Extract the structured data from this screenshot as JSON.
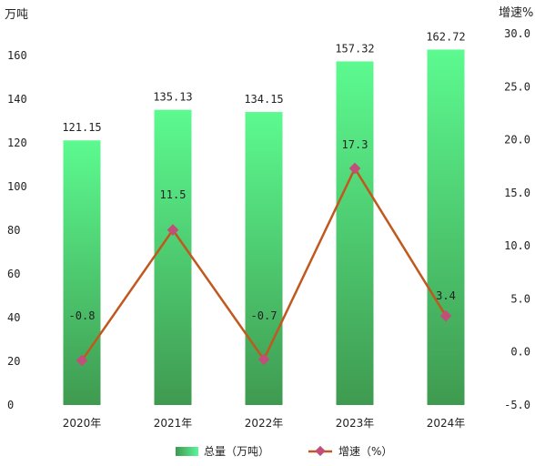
{
  "chart_data": {
    "type": "bar",
    "categories": [
      "2020年",
      "2021年",
      "2022年",
      "2023年",
      "2024年"
    ],
    "series": [
      {
        "name": "总量（万吨）",
        "kind": "bar",
        "axis": "left",
        "values": [
          121.15,
          135.13,
          134.15,
          157.32,
          162.72
        ],
        "labels": [
          "121.15",
          "135.13",
          "134.15",
          "157.32",
          "162.72"
        ]
      },
      {
        "name": "增速（%）",
        "kind": "line",
        "axis": "right",
        "values": [
          -0.8,
          11.5,
          -0.7,
          17.3,
          3.4
        ],
        "labels": [
          "-0.8",
          "11.5",
          "-0.7",
          "17.3",
          "3.4"
        ]
      }
    ],
    "ylabel_left": "万吨",
    "ylabel_right": "增速%",
    "ylim_left": [
      0,
      170
    ],
    "yticks_left": [
      "0",
      "20",
      "40",
      "60",
      "80",
      "100",
      "120",
      "140",
      "160"
    ],
    "ylim_right": [
      -5.0,
      30.0
    ],
    "yticks_right": [
      "-5.0",
      "0.0",
      "5.0",
      "10.0",
      "15.0",
      "20.0",
      "25.0",
      "30.0"
    ],
    "grid": false,
    "legend_position": "bottom",
    "colors": {
      "bar_top": "#5cfa90",
      "bar_bottom": "#3f9a50",
      "line": "#c0581f",
      "marker": "#c0507a",
      "legend_bar": "#5cf59a"
    }
  }
}
